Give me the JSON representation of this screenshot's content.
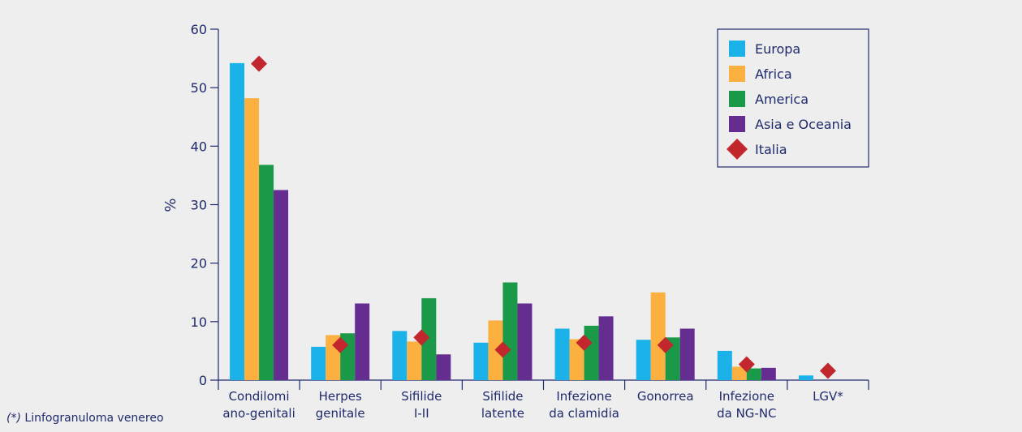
{
  "chart_data": {
    "type": "bar",
    "ylabel": "%",
    "ylim": [
      0,
      60
    ],
    "yticks": [
      0,
      10,
      20,
      30,
      40,
      50,
      60
    ],
    "categories": [
      [
        "Condilomi",
        "ano-genitali"
      ],
      [
        "Herpes",
        "genitale"
      ],
      [
        "Sifilide",
        "I-II"
      ],
      [
        "Sifilide",
        "latente"
      ],
      [
        "Infezione",
        "da clamidia"
      ],
      [
        "Gonorrea"
      ],
      [
        "Infezione",
        "da NG-NC"
      ],
      [
        "LGV*"
      ]
    ],
    "series": [
      {
        "name": "Europa",
        "color": "#1ab2e8",
        "values": [
          54.2,
          5.7,
          8.4,
          6.4,
          8.8,
          6.9,
          5.0,
          0.8
        ]
      },
      {
        "name": "Africa",
        "color": "#fbb040",
        "values": [
          48.2,
          7.7,
          6.6,
          10.2,
          7.0,
          15.0,
          2.3,
          0.0
        ]
      },
      {
        "name": "America",
        "color": "#1a9a48",
        "values": [
          36.8,
          8.0,
          14.0,
          16.7,
          9.3,
          7.3,
          2.0,
          0.0
        ]
      },
      {
        "name": "Asia e Oceania",
        "color": "#662d91",
        "values": [
          32.5,
          13.1,
          4.4,
          13.1,
          10.9,
          8.8,
          2.1,
          0.0
        ]
      }
    ],
    "markers": {
      "name": "Italia",
      "color": "#c1272d",
      "values": [
        54.1,
        6.0,
        7.3,
        5.2,
        6.4,
        6.0,
        2.7,
        1.6
      ]
    },
    "legend_position": "top-right",
    "grid": false
  },
  "footnote": {
    "marker": "(*)",
    "text": " Linfogranuloma venereo"
  },
  "colors": {
    "axis": "#1f2a6b",
    "background": "#eeeeee"
  }
}
